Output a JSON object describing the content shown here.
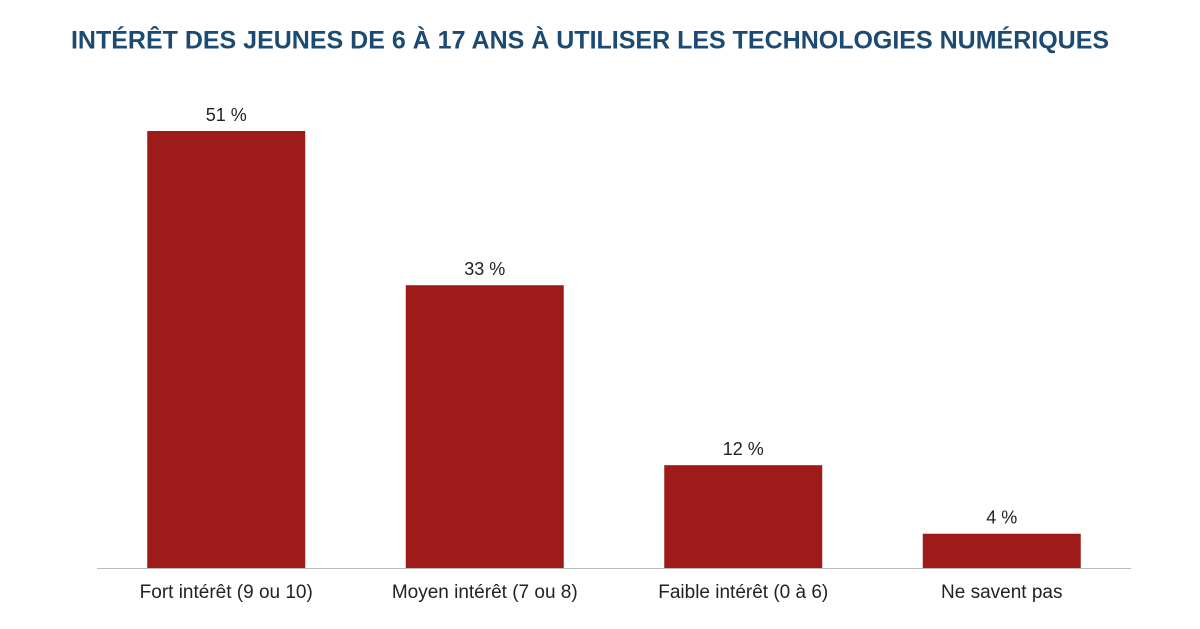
{
  "chart_data": {
    "type": "bar",
    "title": "INTÉRÊT DES JEUNES DE 6 À 17 ANS À UTILISER LES TECHNOLOGIES NUMÉRIQUES",
    "categories": [
      "Fort intérêt (9 ou 10)",
      "Moyen intérêt (7 ou 8)",
      "Faible intérêt (0 à 6)",
      "Ne savent pas"
    ],
    "values": [
      51,
      33,
      12,
      4
    ],
    "value_labels": [
      "51 %",
      "33 %",
      "12 %",
      "4 %"
    ],
    "color": "#9e1b1a"
  }
}
